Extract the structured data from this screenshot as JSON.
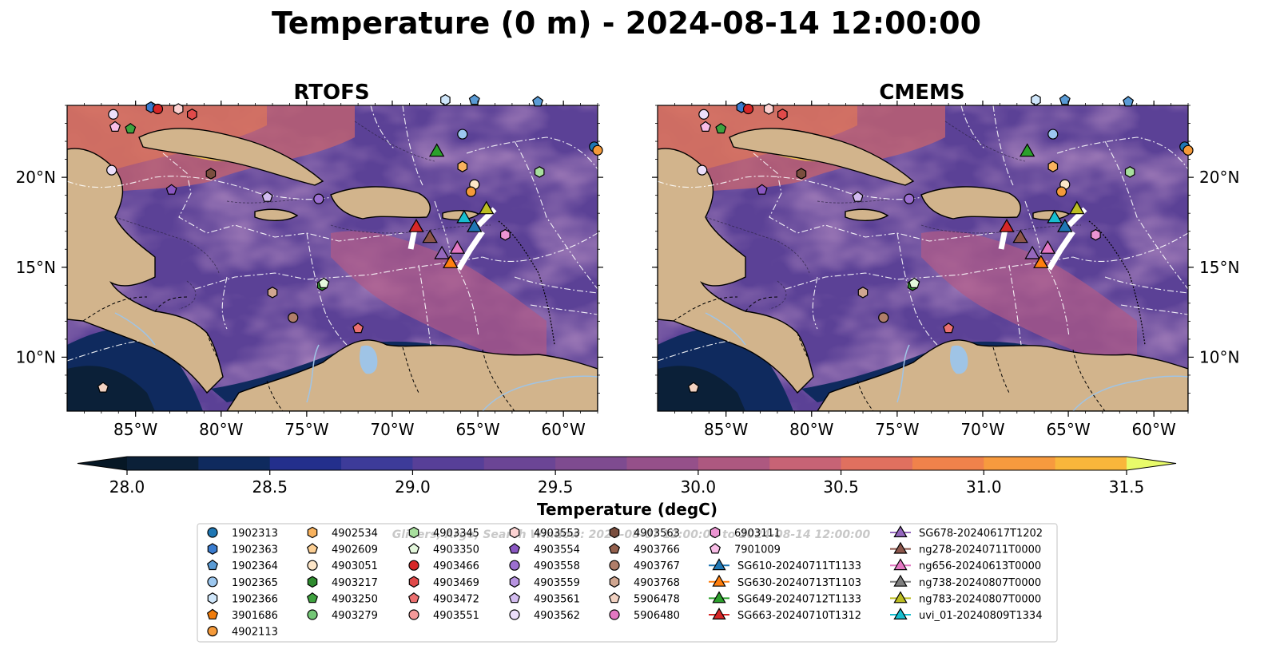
{
  "figure": {
    "title": "Temperature (0 m) - 2024-08-14 12:00:00",
    "watermark": "Gliders, Argo, Search Window: 2024-08-0? 12:00:00 to 2024-08-14 12:00:00"
  },
  "panels": [
    {
      "title": "RTOFS"
    },
    {
      "title": "CMEMS"
    }
  ],
  "axes": {
    "lon_ticks": [
      "85°W",
      "80°W",
      "75°W",
      "70°W",
      "65°W",
      "60°W"
    ],
    "lat_ticks": [
      "20°N",
      "15°N",
      "10°N"
    ],
    "lon_values": [
      -85,
      -80,
      -75,
      -70,
      -65,
      -60
    ],
    "lat_values": [
      20,
      15,
      10
    ],
    "extent": {
      "lon": [
        -89,
        -58
      ],
      "lat": [
        7,
        24
      ]
    }
  },
  "colorbar": {
    "label": "Temperature (degC)",
    "ticks": [
      "28.0",
      "28.5",
      "29.0",
      "29.5",
      "30.0",
      "30.5",
      "31.0",
      "31.5"
    ],
    "min": 28.0,
    "max": 31.5,
    "step": 0.25,
    "colors": [
      "#0b2038",
      "#0f2a5e",
      "#232f8c",
      "#3d3b99",
      "#573f98",
      "#6b4595",
      "#7e4b90",
      "#95508a",
      "#ad5880",
      "#c76375",
      "#e0705f",
      "#f0824b",
      "#f79a3e",
      "#f9b63b",
      "#f7d542"
    ],
    "extend_low_color": "#061725",
    "extend_high_color": "#e8fb6a",
    "land_color": "#d2b48c",
    "lake_color": "#9fc4e6"
  },
  "legend": {
    "columns": [
      [
        {
          "label": "1902313",
          "marker": "o",
          "color": "#1f77b4"
        },
        {
          "label": "1902363",
          "marker": "h",
          "color": "#3a7ccf"
        },
        {
          "label": "1902364",
          "marker": "p",
          "color": "#5a9bd5"
        },
        {
          "label": "1902365",
          "marker": "o",
          "color": "#9cc7ef"
        },
        {
          "label": "1902366",
          "marker": "h",
          "color": "#cfe6fa"
        },
        {
          "label": "3901686",
          "marker": "p",
          "color": "#f07c0c"
        },
        {
          "label": "4902113",
          "marker": "o",
          "color": "#f59a3a"
        }
      ],
      [
        {
          "label": "4902534",
          "marker": "h",
          "color": "#f8b25e"
        },
        {
          "label": "4902609",
          "marker": "p",
          "color": "#fccf94"
        },
        {
          "label": "4903051",
          "marker": "o",
          "color": "#fde6c8"
        },
        {
          "label": "4903217",
          "marker": "h",
          "color": "#2e8b2e"
        },
        {
          "label": "4903250",
          "marker": "p",
          "color": "#3fa23f"
        },
        {
          "label": "4903279",
          "marker": "o",
          "color": "#74c776"
        }
      ],
      [
        {
          "label": "4903345",
          "marker": "h",
          "color": "#a8df9e"
        },
        {
          "label": "4903350",
          "marker": "p",
          "color": "#e4f7dc"
        },
        {
          "label": "4903466",
          "marker": "o",
          "color": "#d62728"
        },
        {
          "label": "4903469",
          "marker": "h",
          "color": "#e04a4a"
        },
        {
          "label": "4903472",
          "marker": "p",
          "color": "#ec7070"
        },
        {
          "label": "4903551",
          "marker": "o",
          "color": "#f59a9a"
        }
      ],
      [
        {
          "label": "4903553",
          "marker": "h",
          "color": "#fcd3d3"
        },
        {
          "label": "4903554",
          "marker": "p",
          "color": "#8a57c2"
        },
        {
          "label": "4903558",
          "marker": "o",
          "color": "#9c6fd0"
        },
        {
          "label": "4903559",
          "marker": "h",
          "color": "#b793e0"
        },
        {
          "label": "4903561",
          "marker": "p",
          "color": "#d3bcef"
        },
        {
          "label": "4903562",
          "marker": "o",
          "color": "#ecdffa"
        }
      ],
      [
        {
          "label": "4903563",
          "marker": "h",
          "color": "#7a4e3e"
        },
        {
          "label": "4903766",
          "marker": "p",
          "color": "#94604d"
        },
        {
          "label": "4903767",
          "marker": "o",
          "color": "#b07e6a"
        },
        {
          "label": "4903768",
          "marker": "h",
          "color": "#d0a690"
        },
        {
          "label": "5906478",
          "marker": "p",
          "color": "#f2d2c2"
        },
        {
          "label": "5906480",
          "marker": "o",
          "color": "#e377c2"
        }
      ],
      [
        {
          "label": "6903111",
          "marker": "h",
          "color": "#ec94d2"
        },
        {
          "label": "7901009",
          "marker": "p",
          "color": "#f8bde6"
        },
        {
          "label": "SG610-20240711T1133",
          "marker": "^",
          "color": "#1f77b4"
        },
        {
          "label": "SG630-20240713T1103",
          "marker": "^",
          "color": "#ff7f0e"
        },
        {
          "label": "SG649-20240712T1133",
          "marker": "^",
          "color": "#2ca02c"
        },
        {
          "label": "SG663-20240710T1312",
          "marker": "^",
          "color": "#d62728"
        }
      ],
      [
        {
          "label": "SG678-20240617T1202",
          "marker": "^",
          "color": "#9467bd"
        },
        {
          "label": "ng278-20240711T0000",
          "marker": "^",
          "color": "#8c564b"
        },
        {
          "label": "ng656-20240613T0000",
          "marker": "^",
          "color": "#e377c2"
        },
        {
          "label": "ng738-20240807T0000",
          "marker": "^",
          "color": "#7f7f7f"
        },
        {
          "label": "ng783-20240807T0000",
          "marker": "^",
          "color": "#bcbd22"
        },
        {
          "label": "uvi_01-20240809T1334",
          "marker": "^",
          "color": "#17becf"
        }
      ]
    ]
  },
  "map_markers": [
    {
      "id": "1902363",
      "lon": -84.1,
      "lat": 23.9
    },
    {
      "id": "4903466",
      "lon": -83.7,
      "lat": 23.8
    },
    {
      "id": "4903553",
      "lon": -82.5,
      "lat": 23.8
    },
    {
      "id": "4903469",
      "lon": -81.7,
      "lat": 23.5
    },
    {
      "id": "4903562",
      "lon": -86.3,
      "lat": 23.5
    },
    {
      "id": "7901009",
      "lon": -86.2,
      "lat": 22.8
    },
    {
      "id": "4903250",
      "lon": -85.3,
      "lat": 22.7
    },
    {
      "id": "4903562",
      "lon": -86.4,
      "lat": 20.4
    },
    {
      "id": "4903554",
      "lon": -82.9,
      "lat": 19.3
    },
    {
      "id": "4903563",
      "lon": -80.6,
      "lat": 20.2
    },
    {
      "id": "4903561",
      "lon": -77.3,
      "lat": 18.9
    },
    {
      "id": "4903558",
      "lon": -74.3,
      "lat": 18.8
    },
    {
      "id": "1902366",
      "lon": -66.9,
      "lat": 24.3
    },
    {
      "id": "1902364",
      "lon": -65.2,
      "lat": 24.3
    },
    {
      "id": "1902364",
      "lon": -61.5,
      "lat": 24.2
    },
    {
      "id": "1902365",
      "lon": -65.9,
      "lat": 22.4
    },
    {
      "id": "1902313",
      "lon": -58.2,
      "lat": 21.7
    },
    {
      "id": "4902113",
      "lon": -58.0,
      "lat": 21.5
    },
    {
      "id": "4902534",
      "lon": -65.9,
      "lat": 20.6
    },
    {
      "id": "4903345",
      "lon": -61.4,
      "lat": 20.3
    },
    {
      "id": "4903051",
      "lon": -65.2,
      "lat": 19.6
    },
    {
      "id": "4902113",
      "lon": -65.4,
      "lat": 19.2
    },
    {
      "id": "6903111",
      "lon": -63.4,
      "lat": 16.8
    },
    {
      "id": "4903217",
      "lon": -74.1,
      "lat": 14.0
    },
    {
      "id": "4903350",
      "lon": -74.0,
      "lat": 14.1
    },
    {
      "id": "4903768",
      "lon": -77.0,
      "lat": 13.6
    },
    {
      "id": "4903767",
      "lon": -75.8,
      "lat": 12.2
    },
    {
      "id": "4903472",
      "lon": -72.0,
      "lat": 11.6
    },
    {
      "id": "5906478",
      "lon": -86.9,
      "lat": 8.3
    }
  ],
  "glider_markers": [
    {
      "id": "SG649-20240712T1133",
      "lon": -67.4,
      "lat": 21.4
    },
    {
      "id": "SG663-20240710T1312",
      "lon": -68.6,
      "lat": 17.2
    },
    {
      "id": "ng278-20240711T0000",
      "lon": -67.8,
      "lat": 16.6
    },
    {
      "id": "ng783-20240807T0000",
      "lon": -64.5,
      "lat": 18.2
    },
    {
      "id": "uvi_01-20240809T1334",
      "lon": -65.8,
      "lat": 17.7
    },
    {
      "id": "SG610-20240711T1133",
      "lon": -65.2,
      "lat": 17.2
    },
    {
      "id": "SG678-20240617T1202",
      "lon": -67.1,
      "lat": 15.7
    },
    {
      "id": "ng656-20240613T0000",
      "lon": -66.2,
      "lat": 16.0
    },
    {
      "id": "SG630-20240713T1103",
      "lon": -66.6,
      "lat": 15.2
    }
  ]
}
